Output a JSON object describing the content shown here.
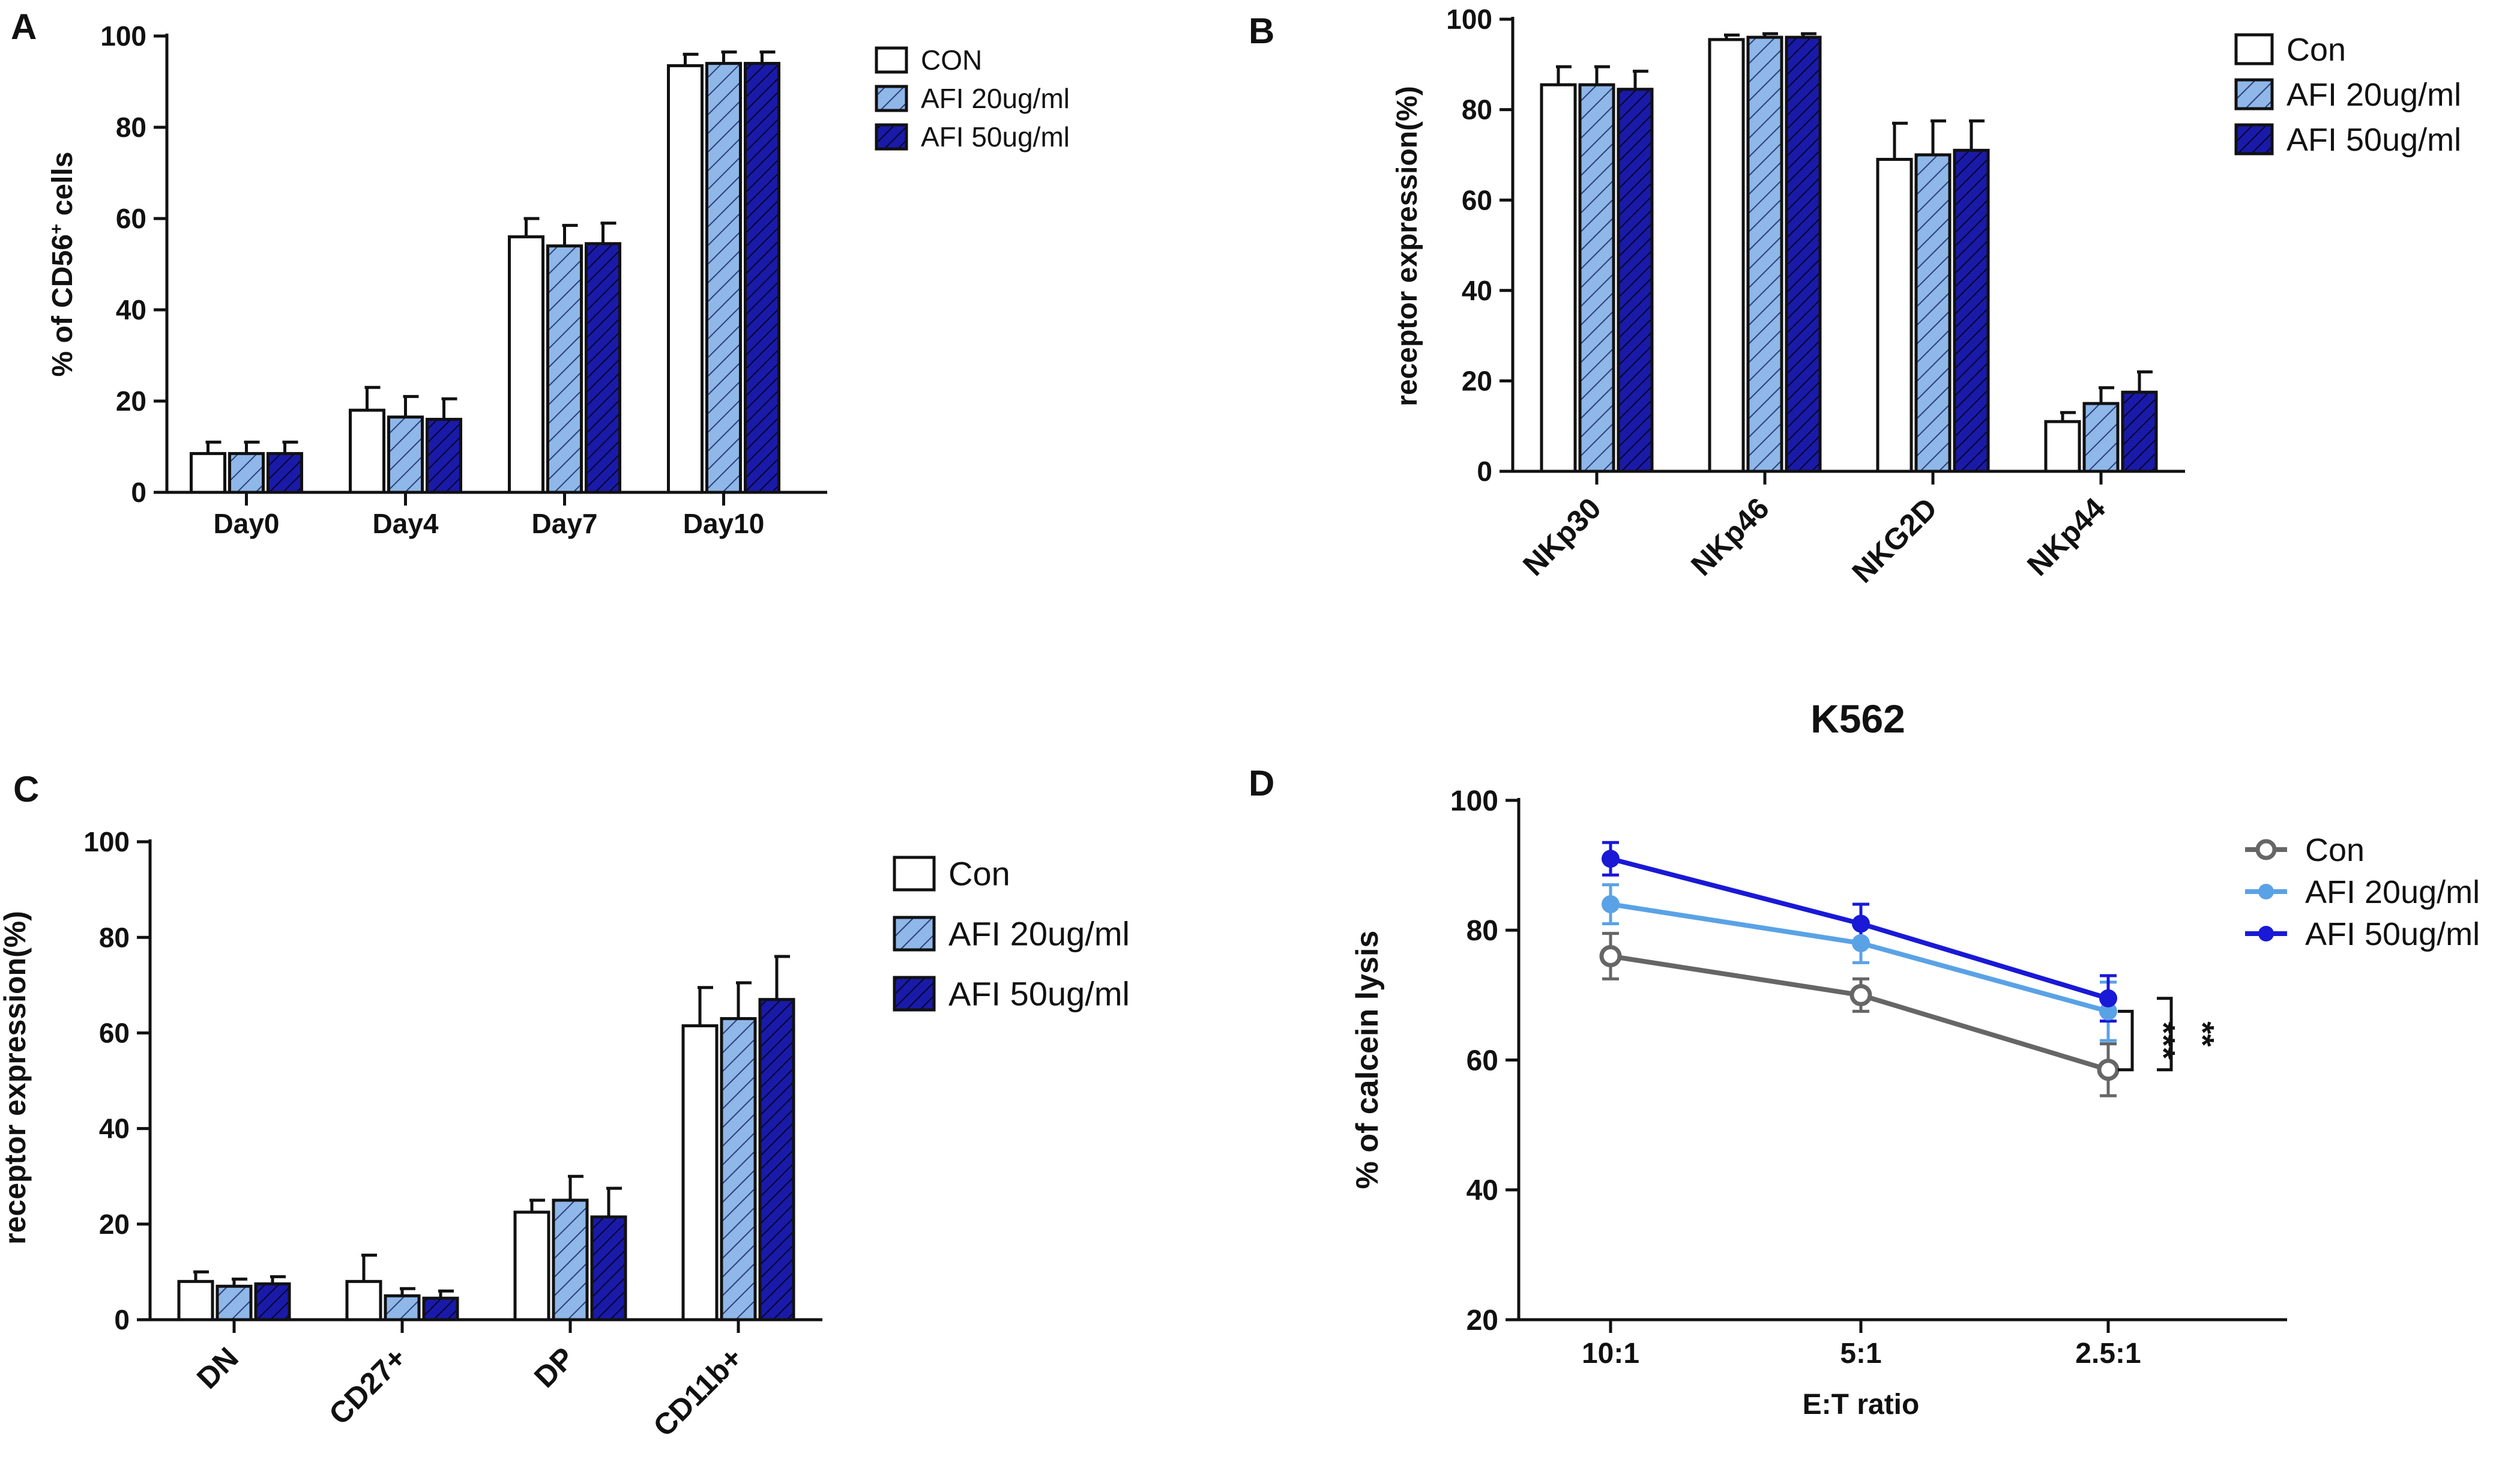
{
  "figure": {
    "colors": {
      "con_bar": "#ffffff",
      "afi20_bar": "#8fb7e8",
      "afi50_bar": "#1a1aa8",
      "con_line": "#666666",
      "afi20_line": "#5aa2e6",
      "afi50_line": "#1919d6",
      "axis": "#111111"
    }
  },
  "chart_data": [
    {
      "id": "A",
      "panel_label": "A",
      "type": "bar",
      "title": "",
      "ylabel_main": "% of CD56",
      "ylabel_sup": "+",
      "ylabel_tail": " cells",
      "xlabel": "",
      "ylim": [
        0,
        100
      ],
      "yticks": [
        0,
        20,
        40,
        60,
        80,
        100
      ],
      "categories": [
        "Day0",
        "Day4",
        "Day7",
        "Day10"
      ],
      "series": [
        {
          "name": "CON",
          "values": [
            8.5,
            18,
            56,
            93.5
          ],
          "errors": [
            2.5,
            5,
            4,
            2.5
          ]
        },
        {
          "name": "AFI 20ug/ml",
          "values": [
            8.5,
            16.5,
            54,
            94
          ],
          "errors": [
            2.5,
            4.5,
            4.5,
            2.5
          ]
        },
        {
          "name": "AFI 50ug/ml",
          "values": [
            8.5,
            16,
            54.5,
            94
          ],
          "errors": [
            2.5,
            4.5,
            4.5,
            2.5
          ]
        }
      ],
      "legend_position": "top-right"
    },
    {
      "id": "B",
      "panel_label": "B",
      "type": "bar",
      "title": "",
      "ylabel": "receptor expression(%)",
      "xlabel": "",
      "ylim": [
        0,
        100
      ],
      "yticks": [
        0,
        20,
        40,
        60,
        80,
        100
      ],
      "categories": [
        "NKp30",
        "NKp46",
        "NKG2D",
        "NKp44"
      ],
      "series": [
        {
          "name": "Con",
          "values": [
            85.5,
            95.5,
            69,
            11
          ],
          "errors": [
            4,
            1,
            8,
            2
          ]
        },
        {
          "name": "AFI 20ug/ml",
          "values": [
            85.5,
            96,
            70,
            15
          ],
          "errors": [
            4,
            0.8,
            7.5,
            3.5
          ]
        },
        {
          "name": "AFI 50ug/ml",
          "values": [
            84.5,
            96,
            71,
            17.5
          ],
          "errors": [
            4,
            0.8,
            6.5,
            4.5
          ]
        }
      ],
      "legend_position": "top-right"
    },
    {
      "id": "C",
      "panel_label": "C",
      "type": "bar",
      "title": "",
      "ylabel": "receptor expression(%)",
      "xlabel": "",
      "ylim": [
        0,
        100
      ],
      "yticks": [
        0,
        20,
        40,
        60,
        80,
        100
      ],
      "categories": [
        "DN",
        "CD27+",
        "DP",
        "CD11b+"
      ],
      "series": [
        {
          "name": "Con",
          "values": [
            8,
            8,
            22.5,
            61.5
          ],
          "errors": [
            2,
            5.5,
            2.5,
            8
          ]
        },
        {
          "name": "AFI 20ug/ml",
          "values": [
            7,
            5,
            25,
            63
          ],
          "errors": [
            1.5,
            1.5,
            5,
            7.5
          ]
        },
        {
          "name": "AFI 50ug/ml",
          "values": [
            7.5,
            4.5,
            21.5,
            67
          ],
          "errors": [
            1.5,
            1.5,
            6,
            9
          ]
        }
      ],
      "legend_position": "top-right"
    },
    {
      "id": "D",
      "panel_label": "D",
      "type": "line",
      "title": "K562",
      "ylabel": "% of calcein lysis",
      "xlabel": "E:T ratio",
      "ylim": [
        20,
        100
      ],
      "yticks": [
        20,
        40,
        60,
        80,
        100
      ],
      "x": [
        "10:1",
        "5:1",
        "2.5:1"
      ],
      "series": [
        {
          "name": "Con",
          "values": [
            76,
            70,
            58.5
          ],
          "errors": [
            3.5,
            2.5,
            4
          ],
          "marker": "open-circle"
        },
        {
          "name": "AFI 20ug/ml",
          "values": [
            84,
            78,
            67.5
          ],
          "errors": [
            3,
            3,
            4.5
          ],
          "marker": "filled-circle"
        },
        {
          "name": "AFI 50ug/ml",
          "values": [
            91,
            81,
            69.5
          ],
          "errors": [
            2.5,
            3,
            3.5
          ],
          "marker": "filled-circle"
        }
      ],
      "significance": [
        {
          "label": "***",
          "between": [
            "Con",
            "AFI 20ug/ml"
          ],
          "at": "2.5:1"
        },
        {
          "label": "**",
          "between": [
            "Con",
            "AFI 50ug/ml"
          ],
          "at": "2.5:1"
        }
      ],
      "legend_position": "top-right"
    }
  ]
}
